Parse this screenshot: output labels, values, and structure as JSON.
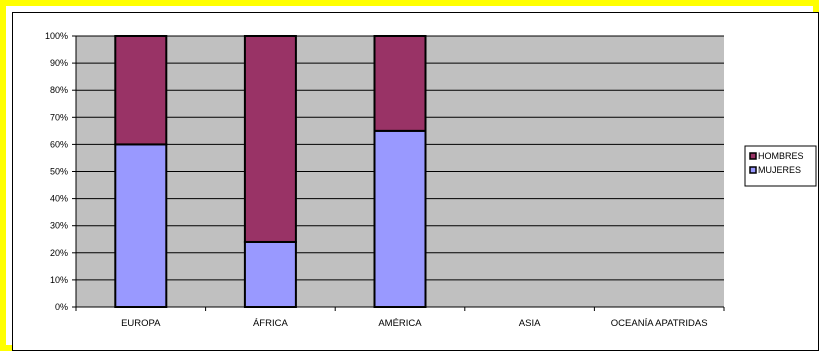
{
  "chart_data": {
    "type": "bar",
    "stacked": true,
    "percent_stacked": true,
    "categories": [
      "EUROPA",
      "ÁFRICA",
      "AMÉRICA",
      "ASIA",
      "OCEANÍA APATRIDAS"
    ],
    "series": [
      {
        "name": "MUJERES",
        "values": [
          60,
          24,
          65,
          null,
          null
        ]
      },
      {
        "name": "HOMBRES",
        "values": [
          40,
          76,
          35,
          null,
          null
        ]
      }
    ],
    "legend_order": [
      "HOMBRES",
      "MUJERES"
    ],
    "y_ticks": [
      "0%",
      "10%",
      "20%",
      "30%",
      "40%",
      "50%",
      "60%",
      "70%",
      "80%",
      "90%",
      "100%"
    ],
    "ylim": [
      0,
      100
    ],
    "grid": true,
    "legend_position": "right",
    "colors": {
      "MUJERES": "#9999ff",
      "HOMBRES": "#993366",
      "plot_background": "#c0c0c0",
      "frame_border": "#ffff00"
    }
  }
}
